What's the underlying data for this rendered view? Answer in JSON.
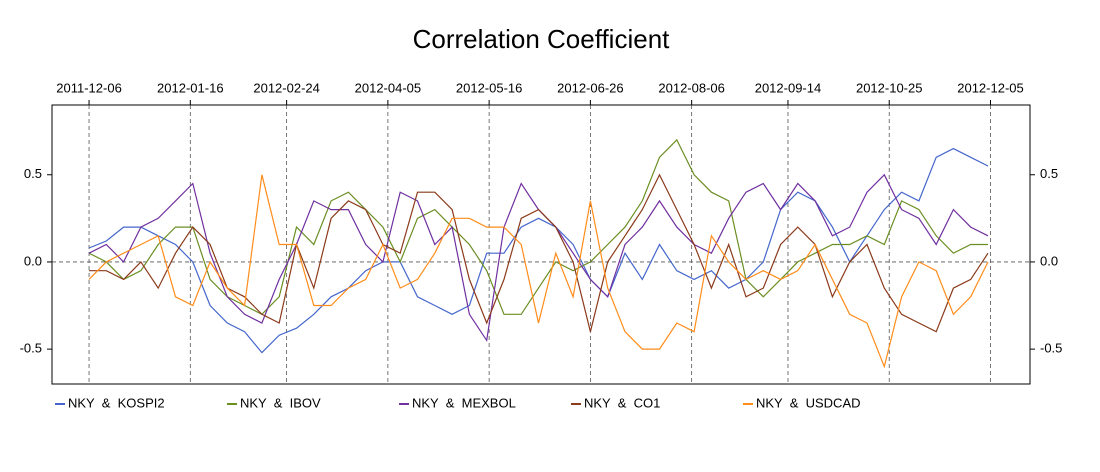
{
  "chart_data": {
    "type": "line",
    "title": "Correlation Coefficient",
    "x": [
      "2011-12-06",
      "2011-12-13",
      "2011-12-20",
      "2011-12-27",
      "2012-01-03",
      "2012-01-10",
      "2012-01-17",
      "2012-01-24",
      "2012-01-31",
      "2012-02-07",
      "2012-02-14",
      "2012-02-21",
      "2012-02-28",
      "2012-03-06",
      "2012-03-13",
      "2012-03-20",
      "2012-03-27",
      "2012-04-03",
      "2012-04-10",
      "2012-04-17",
      "2012-04-24",
      "2012-05-01",
      "2012-05-08",
      "2012-05-15",
      "2012-05-22",
      "2012-05-29",
      "2012-06-05",
      "2012-06-12",
      "2012-06-19",
      "2012-06-26",
      "2012-07-03",
      "2012-07-10",
      "2012-07-17",
      "2012-07-24",
      "2012-07-31",
      "2012-08-07",
      "2012-08-14",
      "2012-08-21",
      "2012-08-28",
      "2012-09-04",
      "2012-09-11",
      "2012-09-18",
      "2012-09-25",
      "2012-10-02",
      "2012-10-09",
      "2012-10-16",
      "2012-10-23",
      "2012-10-30",
      "2012-11-06",
      "2012-11-13",
      "2012-11-20",
      "2012-11-27",
      "2012-12-04"
    ],
    "series": [
      {
        "name": "NKY  &  KOSPI2",
        "color": "#4466cc",
        "values": [
          0.08,
          0.12,
          0.2,
          0.2,
          0.15,
          0.1,
          0.0,
          -0.25,
          -0.35,
          -0.4,
          -0.52,
          -0.42,
          -0.38,
          -0.3,
          -0.2,
          -0.15,
          -0.05,
          0.0,
          0.0,
          -0.2,
          -0.25,
          -0.3,
          -0.25,
          0.05,
          0.05,
          0.2,
          0.25,
          0.2,
          0.1,
          -0.1,
          -0.2,
          0.05,
          -0.1,
          0.1,
          -0.05,
          -0.1,
          -0.05,
          -0.15,
          -0.1,
          0.0,
          0.3,
          0.4,
          0.35,
          0.2,
          0.0,
          0.15,
          0.3,
          0.4,
          0.35,
          0.6,
          0.65,
          0.6,
          0.55
        ]
      },
      {
        "name": "NKY  &  IBOV",
        "color": "#6b8e23",
        "values": [
          0.05,
          0.0,
          -0.1,
          -0.05,
          0.1,
          0.2,
          0.2,
          -0.1,
          -0.2,
          -0.25,
          -0.3,
          -0.2,
          0.2,
          0.1,
          0.35,
          0.4,
          0.3,
          0.2,
          0.0,
          0.25,
          0.3,
          0.2,
          0.1,
          -0.05,
          -0.3,
          -0.3,
          -0.15,
          0.0,
          -0.05,
          0.0,
          0.1,
          0.2,
          0.35,
          0.6,
          0.7,
          0.5,
          0.4,
          0.35,
          -0.1,
          -0.2,
          -0.1,
          0.0,
          0.05,
          0.1,
          0.1,
          0.15,
          0.1,
          0.35,
          0.3,
          0.15,
          0.05,
          0.1,
          0.1
        ]
      },
      {
        "name": "NKY  &  MEXBOL",
        "color": "#7030a0",
        "values": [
          0.05,
          0.1,
          0.0,
          0.2,
          0.25,
          0.35,
          0.45,
          0.05,
          -0.2,
          -0.3,
          -0.35,
          -0.1,
          0.1,
          0.35,
          0.3,
          0.3,
          0.1,
          0.0,
          0.4,
          0.35,
          0.1,
          0.2,
          -0.3,
          -0.45,
          0.2,
          0.45,
          0.3,
          0.2,
          0.05,
          -0.1,
          -0.2,
          0.1,
          0.2,
          0.35,
          0.2,
          0.1,
          0.05,
          0.25,
          0.4,
          0.45,
          0.3,
          0.45,
          0.35,
          0.15,
          0.2,
          0.4,
          0.5,
          0.3,
          0.25,
          0.1,
          0.3,
          0.2,
          0.15
        ]
      },
      {
        "name": "NKY  &  CO1",
        "color": "#8b3a1a",
        "values": [
          -0.05,
          -0.05,
          -0.1,
          0.0,
          -0.15,
          0.05,
          0.2,
          0.1,
          -0.15,
          -0.2,
          -0.3,
          -0.35,
          0.1,
          -0.15,
          0.25,
          0.35,
          0.3,
          0.1,
          0.05,
          0.4,
          0.4,
          0.3,
          -0.1,
          -0.35,
          -0.1,
          0.25,
          0.3,
          0.2,
          0.0,
          -0.4,
          0.0,
          0.15,
          0.3,
          0.5,
          0.3,
          0.1,
          -0.15,
          0.1,
          -0.2,
          -0.15,
          0.1,
          0.2,
          0.1,
          -0.2,
          0.0,
          0.1,
          -0.15,
          -0.3,
          -0.35,
          -0.4,
          -0.15,
          -0.1,
          0.05
        ]
      },
      {
        "name": "NKY  &  USDCAD",
        "color": "#ff8c1a",
        "values": [
          -0.1,
          0.0,
          0.05,
          0.1,
          0.15,
          -0.2,
          -0.25,
          0.0,
          -0.15,
          -0.25,
          0.5,
          0.1,
          0.1,
          -0.25,
          -0.25,
          -0.15,
          -0.1,
          0.1,
          -0.15,
          -0.1,
          0.05,
          0.25,
          0.25,
          0.2,
          0.2,
          0.1,
          -0.35,
          0.05,
          -0.2,
          0.35,
          -0.15,
          -0.4,
          -0.5,
          -0.5,
          -0.35,
          -0.4,
          0.15,
          0.0,
          -0.1,
          -0.05,
          -0.1,
          -0.05,
          0.1,
          -0.1,
          -0.3,
          -0.35,
          -0.6,
          -0.2,
          0.0,
          -0.05,
          -0.3,
          -0.2,
          0.0
        ]
      }
    ],
    "xlim": [
      "2011-11-21",
      "2012-12-21"
    ],
    "xticks": [
      "2011-12-06",
      "2012-01-16",
      "2012-02-24",
      "2012-04-05",
      "2012-05-16",
      "2012-06-26",
      "2012-08-06",
      "2012-09-14",
      "2012-10-25",
      "2012-12-05"
    ],
    "ylim": [
      -0.7,
      0.9
    ],
    "yticks": [
      {
        "value": -0.5,
        "label": "-0.5"
      },
      {
        "value": 0,
        "label": "0.0"
      },
      {
        "value": 0.5,
        "label": "0.5"
      }
    ],
    "hline": 0,
    "grid": true,
    "legend": "bottom"
  }
}
